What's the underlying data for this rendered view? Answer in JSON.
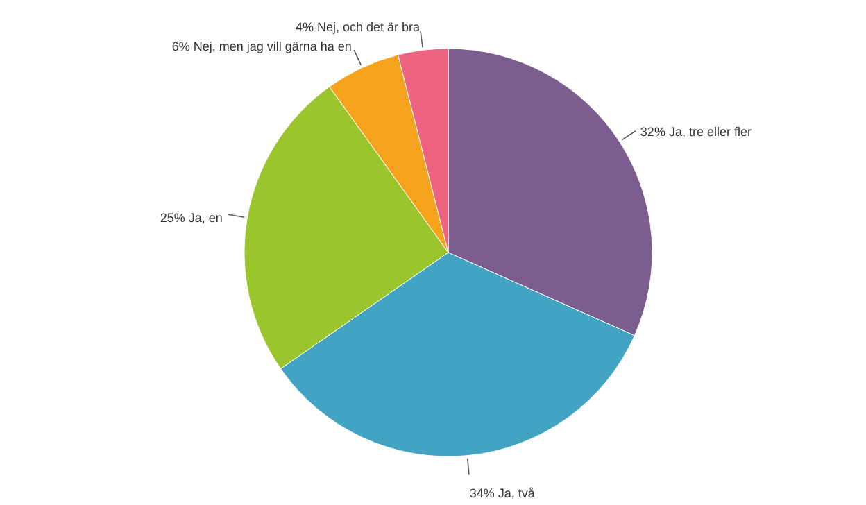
{
  "chart_data": {
    "type": "pie",
    "categories": [
      "Ja, tre eller fler",
      "Ja, två",
      "Ja, en",
      "Nej, men jag vill gärna ha en",
      "Nej, och det är bra"
    ],
    "values": [
      32,
      34,
      25,
      6,
      4
    ],
    "value_labels": [
      "32%",
      "34%",
      "25%",
      "6%",
      "4%"
    ],
    "colors": [
      "#7b5e8f",
      "#42a3c3",
      "#9bc52c",
      "#f5a21c",
      "#ee6380"
    ]
  }
}
